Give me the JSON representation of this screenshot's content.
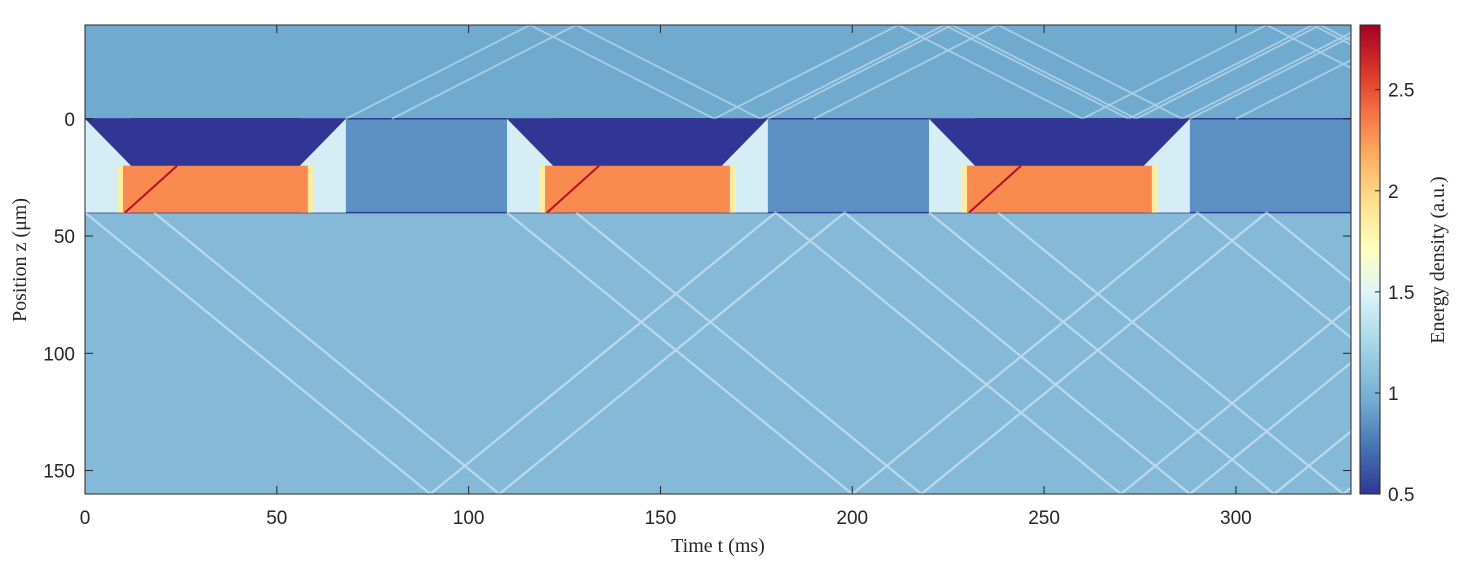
{
  "chart_data": {
    "type": "heatmap",
    "xlabel": "Time t (ms)",
    "ylabel": "Position z (μm)",
    "colorbar_label": "Energy density (a.u.)",
    "xlim": [
      0,
      330
    ],
    "ylim": [
      -40,
      160
    ],
    "y_reversed": true,
    "clim": [
      0.5,
      2.82
    ],
    "colormap": "RdYlBu_r",
    "grid": false,
    "x_ticks": [
      0,
      50,
      100,
      150,
      200,
      250,
      300
    ],
    "x_tick_labels": [
      "0",
      "50",
      "100",
      "150",
      "200",
      "250",
      "300"
    ],
    "y_ticks": [
      0,
      50,
      100,
      150
    ],
    "y_tick_labels": [
      "0",
      "50",
      "100",
      "150"
    ],
    "colorbar_ticks": [
      0.5,
      1,
      1.5,
      2,
      2.5
    ],
    "colorbar_tick_labels": [
      "0.5",
      "1",
      "1.5",
      "2",
      "2.5"
    ],
    "regions": [
      {
        "z_range": [
          -40,
          0
        ],
        "base_value": 0.95
      },
      {
        "z_range": [
          0,
          40
        ],
        "base_value": 0.85
      },
      {
        "z_range": [
          40,
          160
        ],
        "base_value": 1.05
      }
    ],
    "pulses": [
      {
        "t_start": 0,
        "t_rise_end": 12,
        "t_fall_start": 56,
        "t_end": 68,
        "low_value": 0.5,
        "high_value": 2.3,
        "low_z": [
          0,
          20
        ],
        "high_z": [
          20,
          40
        ]
      },
      {
        "t_start": 110,
        "t_rise_end": 122,
        "t_fall_start": 166,
        "t_end": 178,
        "low_value": 0.5,
        "high_value": 2.3,
        "low_z": [
          0,
          20
        ],
        "high_z": [
          20,
          40
        ]
      },
      {
        "t_start": 220,
        "t_rise_end": 232,
        "t_fall_start": 276,
        "t_end": 288,
        "low_value": 0.5,
        "high_value": 2.3,
        "low_z": [
          0,
          20
        ],
        "high_z": [
          20,
          40
        ]
      }
    ],
    "wave_fronts": [
      {
        "t0": 0,
        "slope_ms_per_um": 0.75
      },
      {
        "t0": 110,
        "slope_ms_per_um": 0.75
      },
      {
        "t0": 220,
        "slope_ms_per_um": 0.75
      }
    ]
  },
  "colors": {
    "low": "#313695",
    "mid": "#8fc3dd",
    "high": "#a50026",
    "wave": "#e0f3f8",
    "wave_hot": "#fdae61"
  }
}
